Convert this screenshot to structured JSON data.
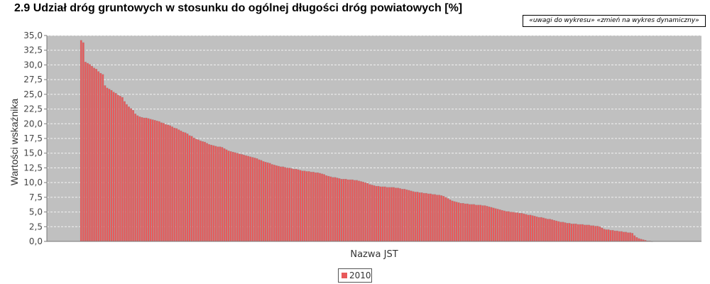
{
  "header": {
    "title": "2.9 Udział dróg gruntowych w stosunku do ogólnej długości dróg powiatowych [%]",
    "links": {
      "notes": "«uwagi do wykresu»",
      "dynamic": "«zmień na wykres dynamiczny»"
    }
  },
  "colors": {
    "plot_background": "#c0c0c0",
    "bar_fill": "#e8595a",
    "bar_outline": "#8c8c8c",
    "grid": "#ffffff"
  },
  "chart_data": {
    "type": "bar",
    "xlabel": "Nazwa JST",
    "ylabel": "Wartości wskaźnika",
    "ylim": [
      0,
      35
    ],
    "yticks": [
      "0,0",
      "2,5",
      "5,0",
      "7,5",
      "10,0",
      "12,5",
      "15,0",
      "17,5",
      "20,0",
      "22,5",
      "25,0",
      "27,5",
      "30,0",
      "32,5",
      "35,0"
    ],
    "grid": true,
    "legend_position": "bottom",
    "x_tick_labels_shown": false,
    "series": [
      {
        "name": "2010",
        "values": [
          34.2,
          33.8,
          30.5,
          30.3,
          30.1,
          29.8,
          29.5,
          29.3,
          28.9,
          28.6,
          28.4,
          26.5,
          26.1,
          25.9,
          25.7,
          25.4,
          25.2,
          24.9,
          24.7,
          24.5,
          23.8,
          23.3,
          22.9,
          22.6,
          22.3,
          21.7,
          21.4,
          21.2,
          21.1,
          21.0,
          21.0,
          20.9,
          20.8,
          20.7,
          20.6,
          20.5,
          20.4,
          20.2,
          20.1,
          19.9,
          19.8,
          19.7,
          19.5,
          19.3,
          19.2,
          19.0,
          18.8,
          18.6,
          18.5,
          18.3,
          18.0,
          17.9,
          17.6,
          17.4,
          17.3,
          17.1,
          17.0,
          16.9,
          16.7,
          16.5,
          16.4,
          16.3,
          16.2,
          16.1,
          16.1,
          16.0,
          15.8,
          15.6,
          15.4,
          15.3,
          15.2,
          15.1,
          15.0,
          14.9,
          14.8,
          14.7,
          14.6,
          14.5,
          14.4,
          14.3,
          14.2,
          14.1,
          13.9,
          13.8,
          13.6,
          13.5,
          13.4,
          13.3,
          13.1,
          13.0,
          12.9,
          12.8,
          12.7,
          12.7,
          12.6,
          12.5,
          12.5,
          12.4,
          12.3,
          12.3,
          12.2,
          12.1,
          12.0,
          12.0,
          11.9,
          11.9,
          11.8,
          11.8,
          11.7,
          11.7,
          11.6,
          11.5,
          11.4,
          11.2,
          11.1,
          11.0,
          10.9,
          10.9,
          10.8,
          10.7,
          10.6,
          10.6,
          10.6,
          10.5,
          10.5,
          10.5,
          10.4,
          10.4,
          10.3,
          10.2,
          10.1,
          10.0,
          9.9,
          9.7,
          9.6,
          9.5,
          9.4,
          9.4,
          9.3,
          9.3,
          9.3,
          9.2,
          9.2,
          9.2,
          9.2,
          9.1,
          9.1,
          9.0,
          8.9,
          8.9,
          8.8,
          8.7,
          8.6,
          8.5,
          8.4,
          8.4,
          8.3,
          8.3,
          8.2,
          8.2,
          8.1,
          8.1,
          8.0,
          8.0,
          7.9,
          7.9,
          7.8,
          7.7,
          7.5,
          7.3,
          7.1,
          6.9,
          6.8,
          6.7,
          6.6,
          6.5,
          6.5,
          6.4,
          6.4,
          6.3,
          6.3,
          6.3,
          6.2,
          6.2,
          6.2,
          6.1,
          6.1,
          6.0,
          5.9,
          5.8,
          5.7,
          5.6,
          5.5,
          5.4,
          5.3,
          5.2,
          5.1,
          5.1,
          5.0,
          5.0,
          4.9,
          4.9,
          4.8,
          4.8,
          4.7,
          4.6,
          4.5,
          4.5,
          4.4,
          4.3,
          4.2,
          4.1,
          4.1,
          4.0,
          3.9,
          3.8,
          3.8,
          3.7,
          3.6,
          3.5,
          3.4,
          3.3,
          3.3,
          3.2,
          3.1,
          3.1,
          3.0,
          3.0,
          3.0,
          2.9,
          2.9,
          2.9,
          2.8,
          2.8,
          2.8,
          2.7,
          2.7,
          2.6,
          2.6,
          2.5,
          2.3,
          2.1,
          2.0,
          2.0,
          1.9,
          1.9,
          1.8,
          1.8,
          1.7,
          1.7,
          1.6,
          1.6,
          1.5,
          1.5,
          1.4,
          1.0,
          0.7,
          0.5,
          0.4,
          0.3,
          0.2,
          0.1,
          0.1,
          0.0
        ]
      }
    ]
  }
}
